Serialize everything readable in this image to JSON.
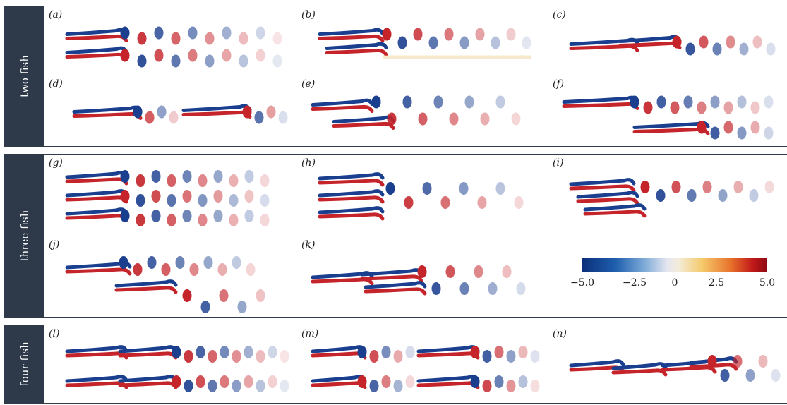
{
  "groups": [
    {
      "label": "two fish",
      "panels": [
        "(a)",
        "(b)",
        "(c)",
        "(d)",
        "(e)",
        "(f)"
      ]
    },
    {
      "label": "three fish",
      "panels": [
        "(g)",
        "(h)",
        "(i)",
        "(j)",
        "(k)"
      ]
    },
    {
      "label": "four fish",
      "panels": [
        "(l)",
        "(m)",
        "(n)"
      ]
    }
  ],
  "colorbar": {
    "ticks": [
      "−5.0",
      "−2.5",
      "0",
      "2.5",
      "5.0"
    ],
    "values": [
      -5.0,
      -2.5,
      0,
      2.5,
      5.0
    ],
    "colors": {
      "negative": "#0b2f7a",
      "zero": "#f0eef2",
      "positive": "#8e0a14"
    }
  }
}
